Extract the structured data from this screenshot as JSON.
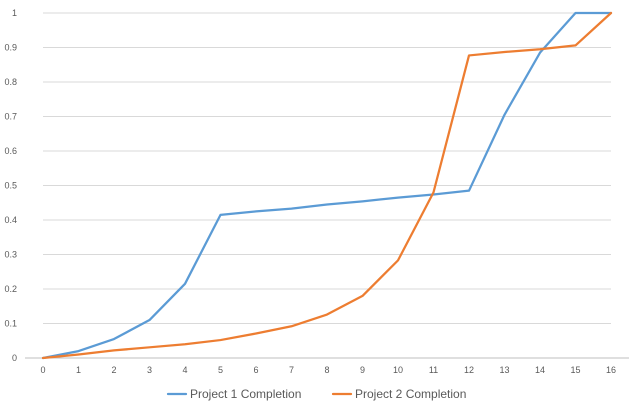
{
  "chart_data": {
    "type": "line",
    "x": [
      0,
      1,
      2,
      3,
      4,
      5,
      6,
      7,
      8,
      9,
      10,
      11,
      12,
      13,
      14,
      15,
      16
    ],
    "series": [
      {
        "name": "Project 1 Completion",
        "color": "#5B9BD5",
        "values": [
          0,
          0.02,
          0.055,
          0.11,
          0.215,
          0.415,
          0.425,
          0.433,
          0.445,
          0.454,
          0.465,
          0.474,
          0.485,
          0.705,
          0.885,
          1.0,
          1.0
        ]
      },
      {
        "name": "Project 2 Completion",
        "color": "#ED7D31",
        "values": [
          0,
          0.01,
          0.022,
          0.031,
          0.04,
          0.052,
          0.071,
          0.092,
          0.126,
          0.18,
          0.283,
          0.48,
          0.877,
          0.887,
          0.895,
          0.906,
          1.0
        ]
      }
    ],
    "xlim": [
      0,
      16
    ],
    "ylim": [
      0,
      1
    ],
    "yticks": [
      0,
      0.1,
      0.2,
      0.3,
      0.4,
      0.5,
      0.6,
      0.7,
      0.8,
      0.9,
      1
    ],
    "ytick_labels": [
      "0",
      "0.1",
      "0.2",
      "0.3",
      "0.4",
      "0.5",
      "0.6",
      "0.7",
      "0.8",
      "0.9",
      "1"
    ],
    "xtick_labels": [
      "0",
      "1",
      "2",
      "3",
      "4",
      "5",
      "6",
      "7",
      "8",
      "9",
      "10",
      "11",
      "12",
      "13",
      "14",
      "15",
      "16"
    ],
    "grid": true,
    "legend_position": "bottom",
    "title": "",
    "xlabel": "",
    "ylabel": "",
    "gridline_color": "#D9D9D9",
    "axis_color": "#BFBFBF"
  }
}
